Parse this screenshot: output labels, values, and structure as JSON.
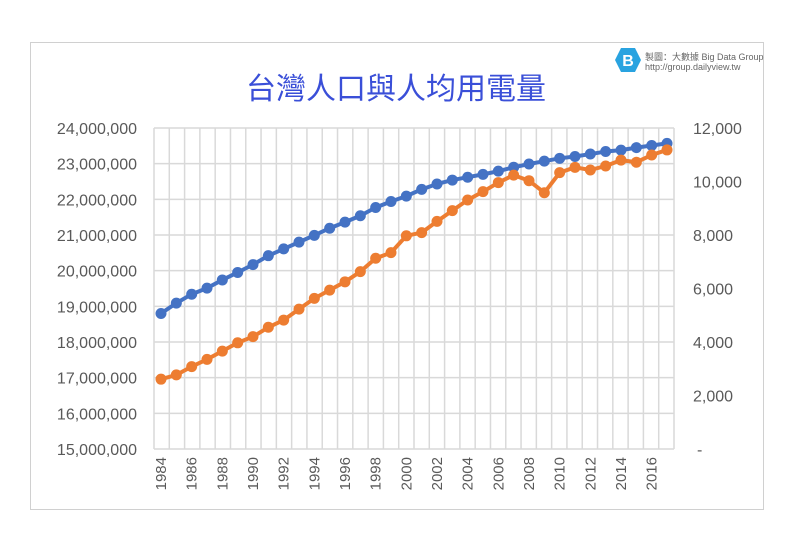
{
  "title": "台灣人口與人均用電量",
  "credit": {
    "line1": "製圖：大數據 Big Data Group",
    "line2": "http://group.dailyview.tw",
    "logo_icon": "hexagon-b-logo",
    "logo_color": "#29a3e0"
  },
  "chart_data": {
    "type": "line",
    "title": "台灣人口與人均用電量",
    "x": [
      1984,
      1985,
      1986,
      1987,
      1988,
      1989,
      1990,
      1991,
      1992,
      1993,
      1994,
      1995,
      1996,
      1997,
      1998,
      1999,
      2000,
      2001,
      2002,
      2003,
      2004,
      2005,
      2006,
      2007,
      2008,
      2009,
      2010,
      2011,
      2012,
      2013,
      2014,
      2015,
      2016,
      2017
    ],
    "x_tick_labels": [
      "1984",
      "1986",
      "1988",
      "1990",
      "1992",
      "1994",
      "1996",
      "1998",
      "2000",
      "2002",
      "2004",
      "2006",
      "2008",
      "2010",
      "2012",
      "2014",
      "2016"
    ],
    "y_left": {
      "range": [
        15000000,
        24000000
      ],
      "tick_labels": [
        "15,000,000",
        "16,000,000",
        "17,000,000",
        "18,000,000",
        "19,000,000",
        "20,000,000",
        "21,000,000",
        "22,000,000",
        "23,000,000",
        "24,000,000"
      ]
    },
    "y_right": {
      "range": [
        0,
        12000
      ],
      "tick_labels": [
        "-",
        "2,000",
        "4,000",
        "6,000",
        "8,000",
        "10,000",
        "12,000"
      ]
    },
    "grid": true,
    "legend": "none",
    "series": [
      {
        "axis": "left",
        "color": "#4472c4",
        "values": [
          18800000,
          19090000,
          19340000,
          19510000,
          19740000,
          19950000,
          20170000,
          20420000,
          20610000,
          20800000,
          20990000,
          21190000,
          21360000,
          21540000,
          21770000,
          21940000,
          22090000,
          22280000,
          22430000,
          22540000,
          22620000,
          22700000,
          22790000,
          22900000,
          22990000,
          23070000,
          23150000,
          23200000,
          23270000,
          23340000,
          23380000,
          23450000,
          23510000,
          23570000
        ]
      },
      {
        "axis": "right",
        "color": "#ed7d31",
        "values": [
          2610,
          2770,
          3080,
          3350,
          3660,
          3970,
          4200,
          4550,
          4820,
          5230,
          5630,
          5940,
          6250,
          6630,
          7130,
          7340,
          7970,
          8090,
          8510,
          8910,
          9310,
          9620,
          9960,
          10240,
          10030,
          9580,
          10330,
          10530,
          10430,
          10580,
          10800,
          10720,
          10990,
          11180
        ]
      }
    ]
  }
}
